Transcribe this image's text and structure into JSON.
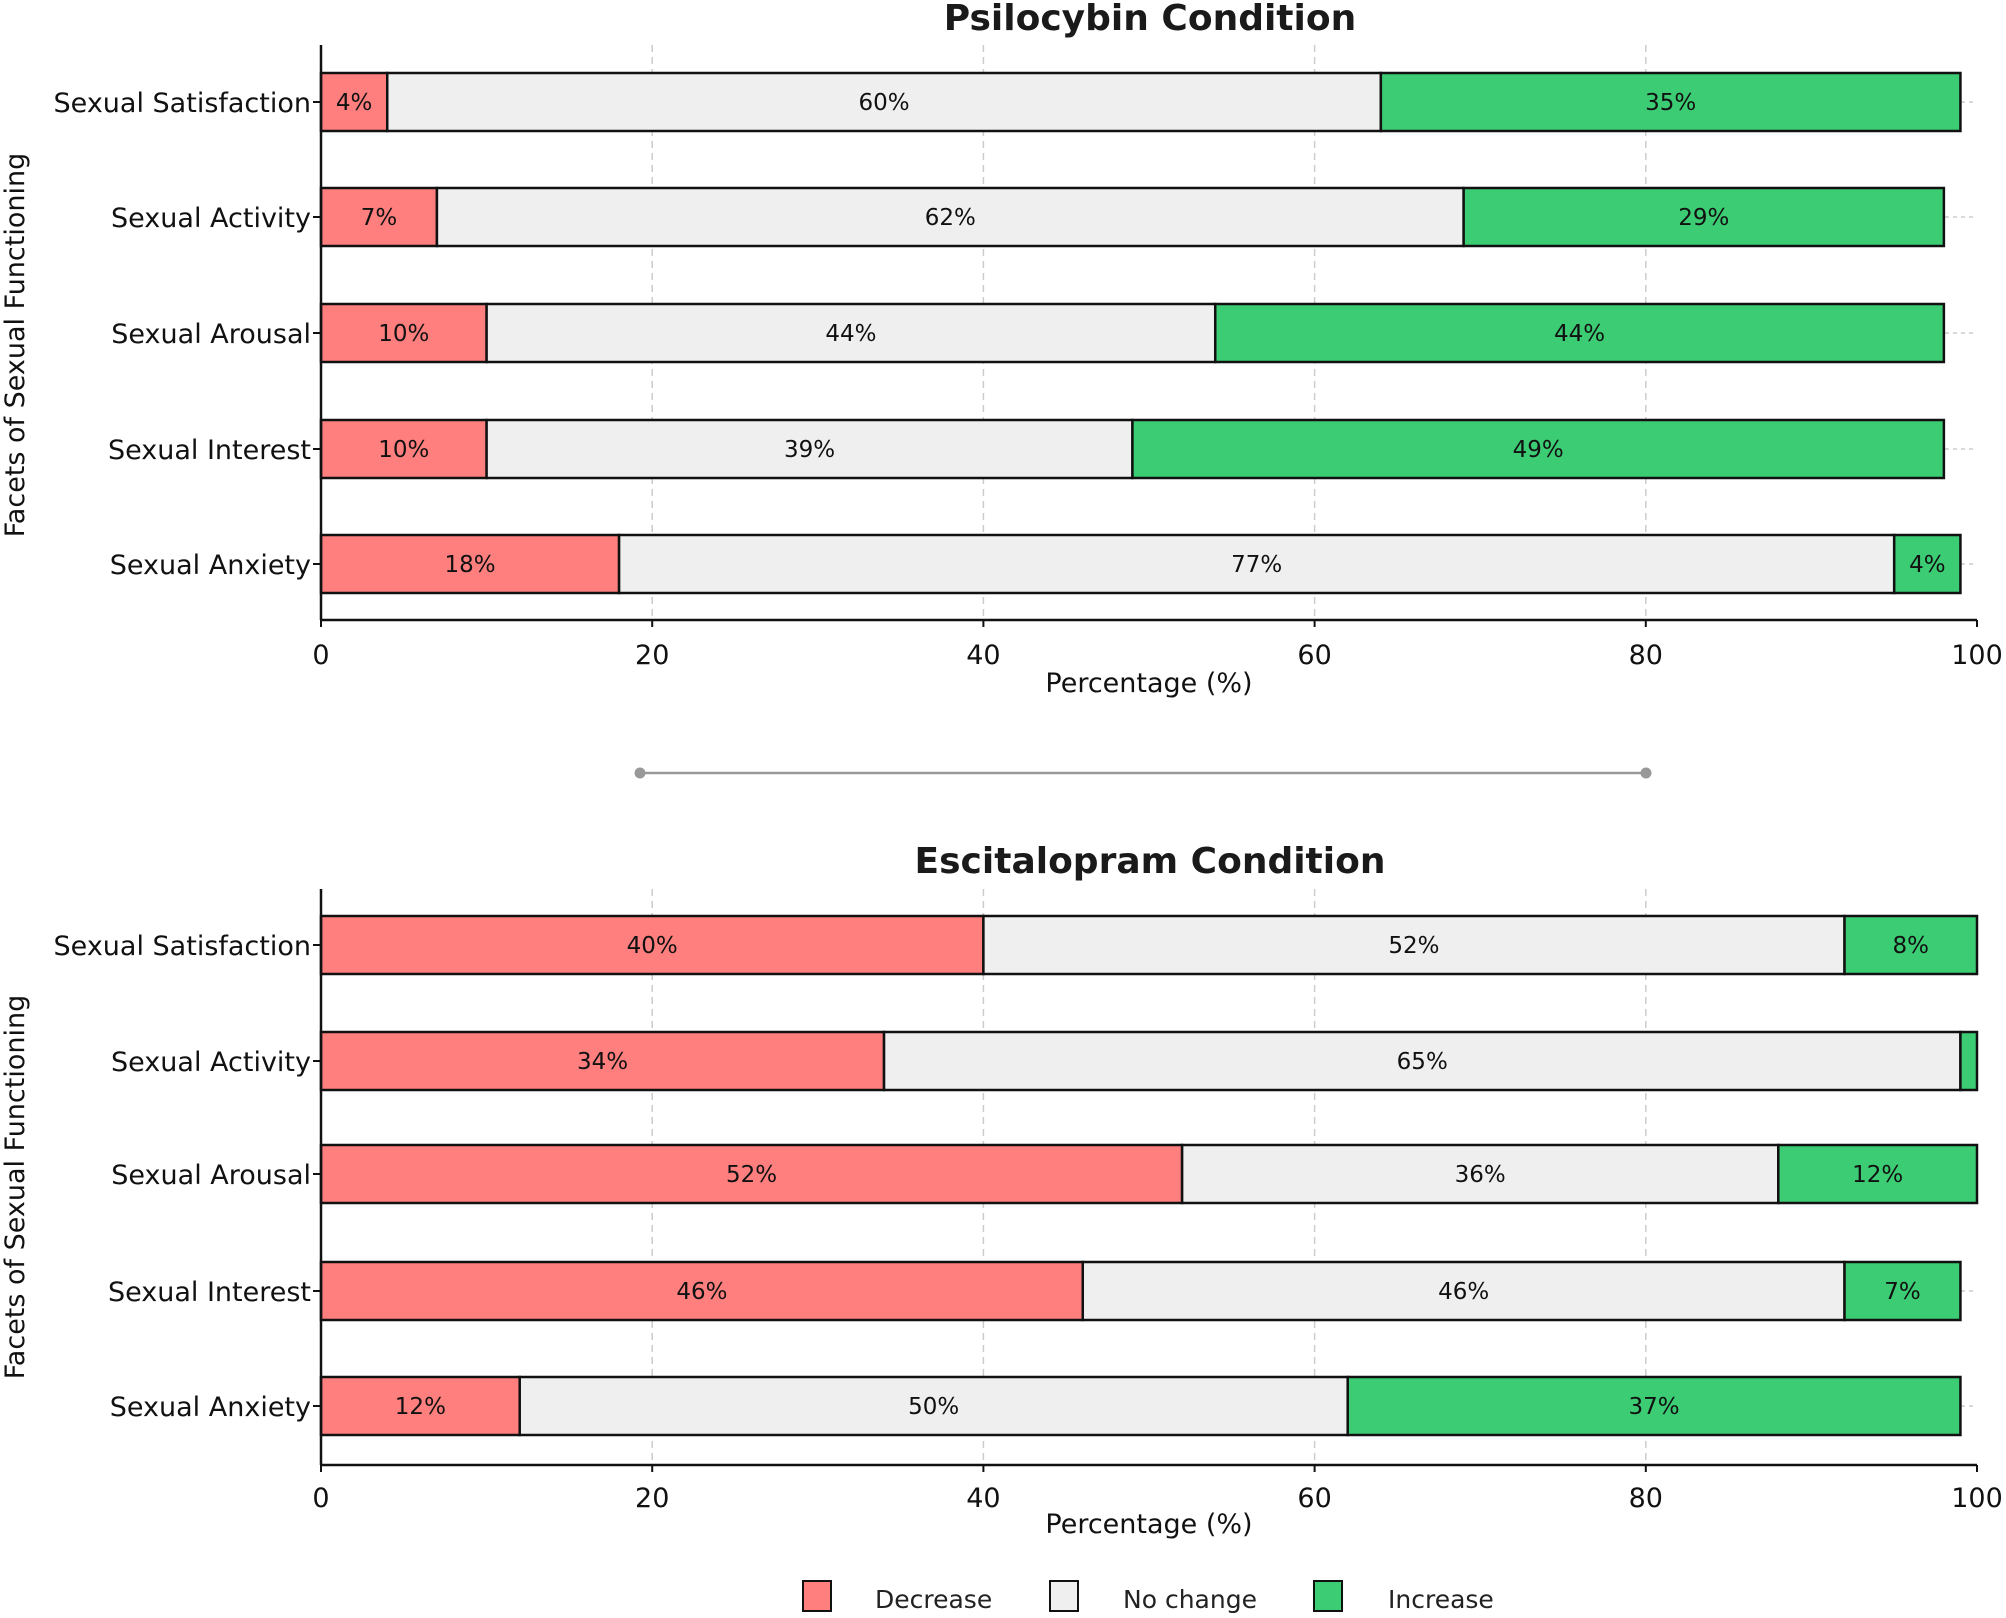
{
  "chart_data": [
    {
      "type": "bar",
      "orientation": "horizontal",
      "stacked": true,
      "title": "Psilocybin Condition",
      "xlabel": "Percentage (%)",
      "ylabel": "Facets of Sexual Functioning",
      "xlim": [
        0,
        100
      ],
      "xticks": [
        "0",
        "20",
        "40",
        "60",
        "80",
        "100"
      ],
      "grid": true,
      "categories": [
        "Sexual Satisfaction",
        "Sexual Activity",
        "Sexual Arousal",
        "Sexual Interest",
        "Sexual Anxiety"
      ],
      "series": [
        {
          "name": "Decrease",
          "color": "#ff7f7f",
          "values": [
            4,
            7,
            10,
            10,
            18
          ],
          "labels": [
            "4%",
            "7%",
            "10%",
            "10%",
            "18%"
          ]
        },
        {
          "name": "No change",
          "color": "#efefef",
          "values": [
            60,
            62,
            44,
            39,
            77
          ],
          "labels": [
            "60%",
            "62%",
            "44%",
            "39%",
            "77%"
          ]
        },
        {
          "name": "Increase",
          "color": "#3ccc74",
          "values": [
            35,
            29,
            44,
            49,
            4
          ],
          "labels": [
            "35%",
            "29%",
            "44%",
            "49%",
            "4%"
          ]
        }
      ]
    },
    {
      "type": "bar",
      "orientation": "horizontal",
      "stacked": true,
      "title": "Escitalopram Condition",
      "xlabel": "Percentage (%)",
      "ylabel": "Facets of Sexual Functioning",
      "xlim": [
        0,
        100
      ],
      "xticks": [
        "0",
        "20",
        "40",
        "60",
        "80",
        "100"
      ],
      "grid": true,
      "categories": [
        "Sexual Satisfaction",
        "Sexual Activity",
        "Sexual Arousal",
        "Sexual Interest",
        "Sexual Anxiety"
      ],
      "series": [
        {
          "name": "Decrease",
          "color": "#ff7f7f",
          "values": [
            40,
            34,
            52,
            46,
            12
          ],
          "labels": [
            "40%",
            "34%",
            "52%",
            "46%",
            "12%"
          ]
        },
        {
          "name": "No change",
          "color": "#efefef",
          "values": [
            52,
            65,
            36,
            46,
            50
          ],
          "labels": [
            "52%",
            "65%",
            "36%",
            "46%",
            "50%"
          ]
        },
        {
          "name": "Increase",
          "color": "#3ccc74",
          "values": [
            8,
            1,
            12,
            7,
            37
          ],
          "labels": [
            "8%",
            "",
            "12%",
            "7%",
            "37%"
          ]
        }
      ]
    }
  ],
  "legend": {
    "position": "bottom-center",
    "items": [
      {
        "label": "Decrease",
        "color": "#ff7f7f"
      },
      {
        "label": "No change",
        "color": "#efefef"
      },
      {
        "label": "Increase",
        "color": "#3ccc74"
      }
    ]
  },
  "separator": {
    "color": "#999999"
  }
}
